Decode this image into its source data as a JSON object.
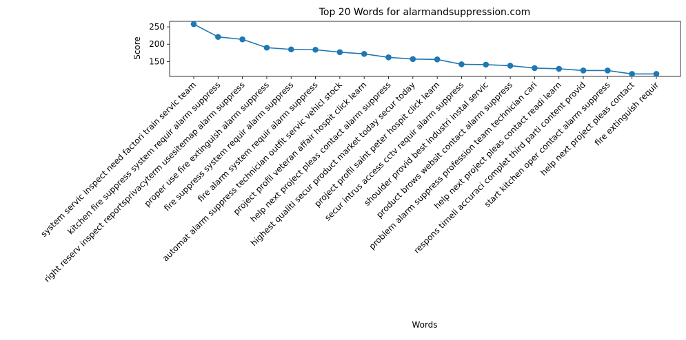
{
  "chart_data": {
    "type": "line",
    "title": "Top 20 Words for alarmandsuppression.com",
    "xlabel": "Words",
    "ylabel": "Score",
    "ylim": [
      107,
      266
    ],
    "yticks": [
      150,
      200,
      250
    ],
    "grid": false,
    "marker": "circle",
    "color": "#1f77b4",
    "categories": [
      "system servic inspect need factori train servic team",
      "kitchen fire suppress system requir alarm suppress",
      "right reserv inspect reportsprivacyterm usesitemap alarm suppress",
      "proper use fire extinguish alarm suppress",
      "fire suppress system requir alarm suppress",
      "fire alarm system requir alarm suppress",
      "automat alarm suppress technician outfit servic vehicl stock",
      "project profil veteran affair hospit click learn",
      "help next project pleas contact alarm suppress",
      "highest qualiti secur product market today secur today",
      "project profil saint peter hospit click learn",
      "secur intrus access cctv requir alarm suppress",
      "shoulder provid best industri instal servic",
      "product brows websit contact alarm suppress",
      "problem alarm suppress profession team technician cari",
      "help next project pleas contact readi learn",
      "respons timeli accuraci complet third parti content provid",
      "start kitchen oper contact alarm suppress",
      "help next project pleas contact",
      "fire extinguish requir"
    ],
    "values": [
      258,
      221,
      214,
      190,
      185,
      184,
      177,
      172,
      162,
      157,
      156,
      142,
      141,
      138,
      131,
      129,
      124,
      124,
      114,
      114
    ]
  }
}
